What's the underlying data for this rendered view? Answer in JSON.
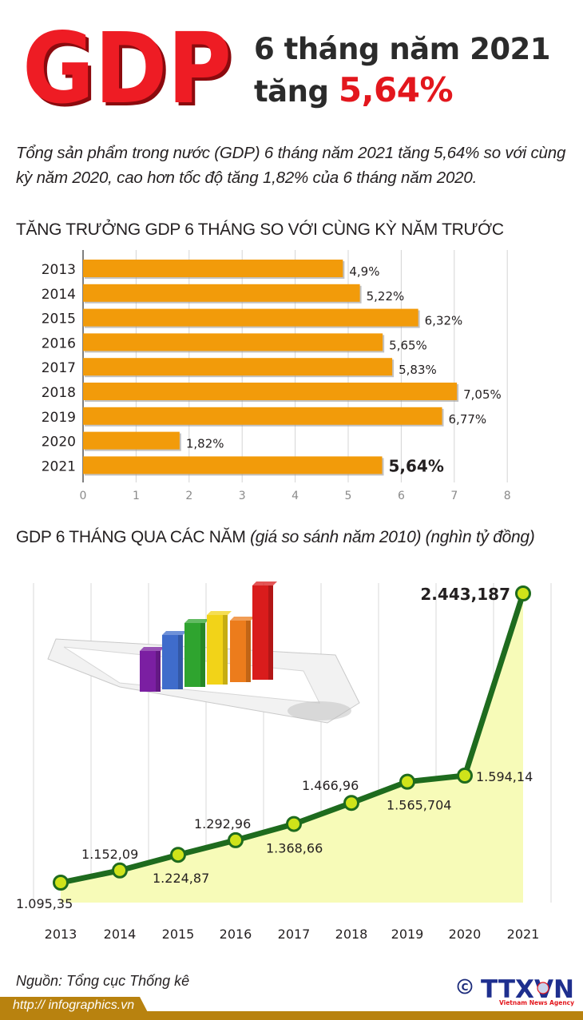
{
  "header": {
    "logo_text": "GDP",
    "title_line1": "6 tháng năm 2021",
    "title_line2_prefix": "tăng",
    "title_line2_value": "5,64%"
  },
  "intro": {
    "text": "Tổng sản phẩm trong nước (GDP) 6 tháng năm 2021 tăng 5,64% so với cùng kỳ năm 2020, cao hơn tốc độ tăng 1,82% của 6 tháng năm 2020."
  },
  "section1": {
    "title": "TĂNG TRƯỞNG GDP 6 THÁNG SO VỚI CÙNG KỲ NĂM TRƯỚC"
  },
  "section2": {
    "title": "GDP 6 THÁNG QUA CÁC NĂM",
    "subtitle": "(giá so sánh năm 2010) (nghìn tỷ đồng)"
  },
  "colors": {
    "bar": "#f29b0a",
    "line": "#1e6b1e",
    "marker": "#cfe31a",
    "area": "#f7fbb8",
    "accent_red": "#e3171d",
    "footer": "#b8820f"
  },
  "chart_data": [
    {
      "type": "bar",
      "orientation": "horizontal",
      "title": "TĂNG TRƯỞNG GDP 6 THÁNG SO VỚI CÙNG KỲ NĂM TRƯỚC",
      "categories": [
        "2013",
        "2014",
        "2015",
        "2016",
        "2017",
        "2018",
        "2019",
        "2020",
        "2021"
      ],
      "values": [
        4.9,
        5.22,
        6.32,
        5.65,
        5.83,
        7.05,
        6.77,
        1.82,
        5.64
      ],
      "labels": [
        "4,9%",
        "5,22%",
        "6,32%",
        "5,65%",
        "5,83%",
        "7,05%",
        "6,77%",
        "1,82%",
        "5,64%"
      ],
      "xlabel": "",
      "ylabel": "",
      "xlim": [
        0,
        8
      ],
      "xticks": [
        "0",
        "1",
        "2",
        "3",
        "4",
        "5",
        "6",
        "7",
        "8"
      ],
      "grid": true,
      "legend": null
    },
    {
      "type": "area",
      "title": "GDP 6 THÁNG QUA CÁC NĂM (giá so sánh năm 2010) (nghìn tỷ đồng)",
      "categories": [
        "2013",
        "2014",
        "2015",
        "2016",
        "2017",
        "2018",
        "2019",
        "2020",
        "2021"
      ],
      "values": [
        1095.35,
        1152.09,
        1224.87,
        1292.96,
        1368.66,
        1466.96,
        1565.704,
        1594.14,
        2443.187
      ],
      "labels": [
        "1.095,35",
        "1.152,09",
        "1.224,87",
        "1.292,96",
        "1.368,66",
        "1.466,96",
        "1.565,704",
        "1.594,14",
        "2.443,187"
      ],
      "xlabel": "",
      "ylabel": "nghìn tỷ đồng",
      "grid": true,
      "legend": null
    }
  ],
  "bar_chart": {
    "years": [
      "2013",
      "2014",
      "2015",
      "2016",
      "2017",
      "2018",
      "2019",
      "2020",
      "2021"
    ],
    "labels": [
      "4,9%",
      "5,22%",
      "6,32%",
      "5,65%",
      "5,83%",
      "7,05%",
      "6,77%",
      "1,82%",
      "5,64%"
    ],
    "ticks": [
      "0",
      "1",
      "2",
      "3",
      "4",
      "5",
      "6",
      "7",
      "8"
    ]
  },
  "line_chart": {
    "years": [
      "2013",
      "2014",
      "2015",
      "2016",
      "2017",
      "2018",
      "2019",
      "2020",
      "2021"
    ],
    "labels": [
      "1.095,35",
      "1.152,09",
      "1.224,87",
      "1.292,96",
      "1.368,66",
      "1.466,96",
      "1.565,704",
      "1.594,14",
      "2.443,187"
    ]
  },
  "footer": {
    "source": "Nguồn: Tổng cục Thống kê",
    "url": "http:// infographics.vn",
    "copyright_symbol": "©",
    "agency_logo": "TTXVN",
    "agency_name": "Vietnam News Agency"
  }
}
